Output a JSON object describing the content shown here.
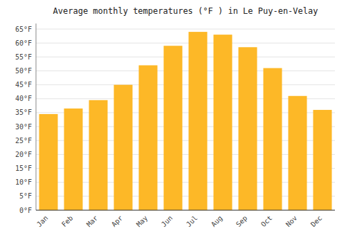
{
  "chart_data": {
    "type": "bar",
    "title": "Average monthly temperatures (°F ) in Le Puy-en-Velay",
    "categories": [
      "Jan",
      "Feb",
      "Mar",
      "Apr",
      "May",
      "Jun",
      "Jul",
      "Aug",
      "Sep",
      "Oct",
      "Nov",
      "Dec"
    ],
    "values": [
      34.5,
      36.5,
      39.5,
      45.0,
      52.0,
      59.0,
      64.0,
      63.0,
      58.5,
      51.0,
      41.0,
      36.0
    ],
    "color": "#FDB827",
    "ylim": [
      0,
      67
    ],
    "yticks": [
      {
        "value": 0,
        "label": "0°F"
      },
      {
        "value": 5,
        "label": "5°F"
      },
      {
        "value": 10,
        "label": "10°F"
      },
      {
        "value": 15,
        "label": "15°F"
      },
      {
        "value": 20,
        "label": "20°F"
      },
      {
        "value": 25,
        "label": "25°F"
      },
      {
        "value": 30,
        "label": "30°F"
      },
      {
        "value": 35,
        "label": "35°F"
      },
      {
        "value": 40,
        "label": "40°F"
      },
      {
        "value": 45,
        "label": "45°F"
      },
      {
        "value": 50,
        "label": "50°F"
      },
      {
        "value": 55,
        "label": "55°F"
      },
      {
        "value": 60,
        "label": "60°F"
      },
      {
        "value": 65,
        "label": "65°F"
      }
    ],
    "grid": true
  }
}
